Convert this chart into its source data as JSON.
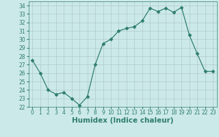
{
  "x": [
    0,
    1,
    2,
    3,
    4,
    5,
    6,
    7,
    8,
    9,
    10,
    11,
    12,
    13,
    14,
    15,
    16,
    17,
    18,
    19,
    20,
    21,
    22,
    23
  ],
  "y": [
    27.5,
    26.0,
    24.0,
    23.5,
    23.7,
    23.0,
    22.2,
    23.2,
    27.0,
    29.5,
    30.0,
    31.0,
    31.3,
    31.5,
    32.2,
    33.7,
    33.3,
    33.7,
    33.2,
    33.8,
    30.5,
    28.3,
    26.2,
    26.2
  ],
  "line_color": "#2e7d6e",
  "marker": "D",
  "marker_size": 2.5,
  "bg_color": "#cce9e9",
  "grid_color": "#b0c8c8",
  "xlabel": "Humidex (Indice chaleur)",
  "ylim": [
    22,
    34.5
  ],
  "xlim": [
    -0.5,
    23.5
  ],
  "yticks": [
    22,
    23,
    24,
    25,
    26,
    27,
    28,
    29,
    30,
    31,
    32,
    33,
    34
  ],
  "xticks": [
    0,
    1,
    2,
    3,
    4,
    5,
    6,
    7,
    8,
    9,
    10,
    11,
    12,
    13,
    14,
    15,
    16,
    17,
    18,
    19,
    20,
    21,
    22,
    23
  ],
  "tick_label_size": 5.5,
  "xlabel_fontsize": 7.5,
  "xlabel_fontweight": "bold",
  "tick_color": "#2e7d6e",
  "label_color": "#2e7d6e"
}
